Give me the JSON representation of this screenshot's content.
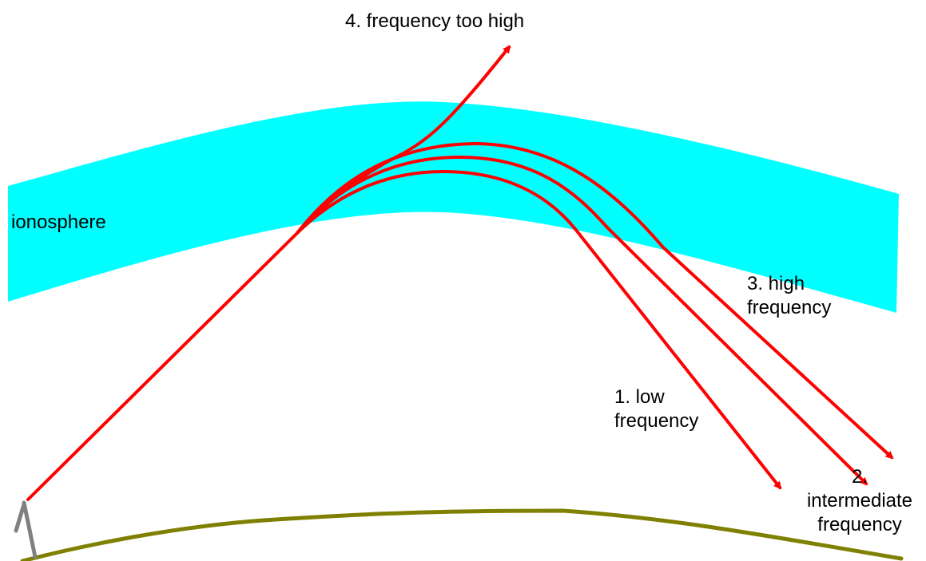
{
  "diagram": {
    "labels": {
      "ionosphere": "ionosphere",
      "ray4": "4. frequency too high",
      "ray3_line1": "3. high",
      "ray3_line2": "frequency",
      "ray1_line1": "1. low",
      "ray1_line2": "frequency",
      "ray2_line1": "2.",
      "ray2_line2": "intermediate",
      "ray2_line3": "frequency"
    },
    "colors": {
      "ionosphere_fill": "#00ffff",
      "ray": "#ff0000",
      "ground": "#808000",
      "antenna": "#808080",
      "text": "#000000",
      "background": "#ffffff"
    }
  }
}
